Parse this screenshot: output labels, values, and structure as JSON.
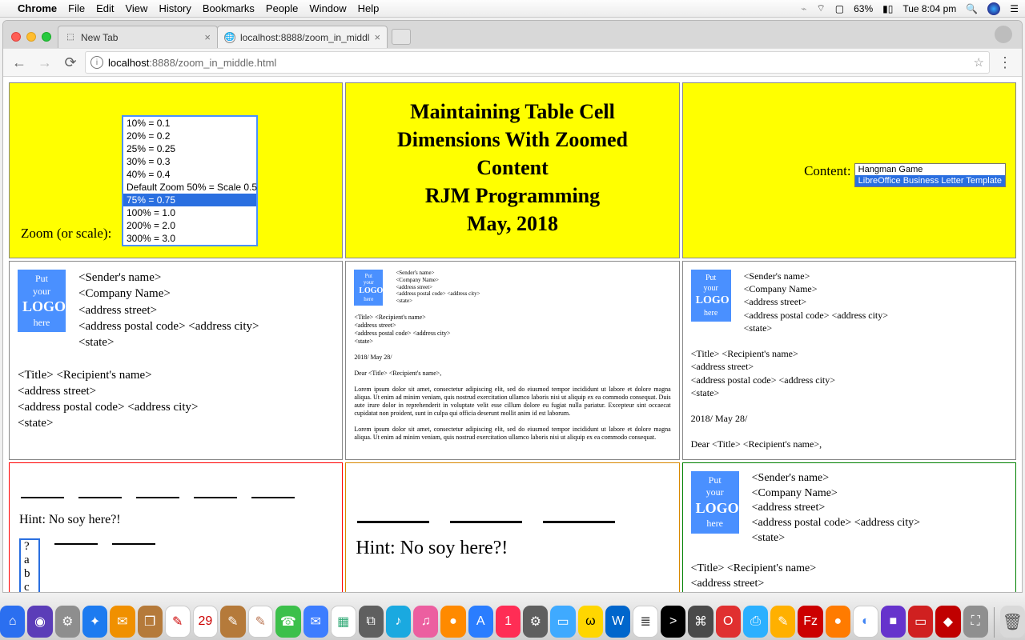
{
  "menubar": {
    "appname": "Chrome",
    "items": [
      "File",
      "Edit",
      "View",
      "History",
      "Bookmarks",
      "People",
      "Window",
      "Help"
    ],
    "battery": "63%",
    "clock": "Tue 8:04 pm"
  },
  "tabs": [
    {
      "title": "New Tab",
      "active": false
    },
    {
      "title": "localhost:8888/zoom_in_middl",
      "active": true
    }
  ],
  "omnibox": {
    "host": "localhost",
    "port": ":8888",
    "path": "/zoom_in_middle.html"
  },
  "page": {
    "zoom_label": "Zoom (or scale):",
    "zoom_options": [
      "10% = 0.1",
      "20% = 0.2",
      "25% = 0.25",
      "30% = 0.3",
      "40% = 0.4",
      "Default Zoom 50% = Scale 0.5",
      "75% = 0.75",
      "100% = 1.0",
      "200% = 2.0",
      "300% = 3.0"
    ],
    "zoom_selected_index": 6,
    "title_lines": [
      "Maintaining Table Cell",
      "Dimensions With Zoomed",
      "Content",
      "RJM Programming",
      "May, 2018"
    ],
    "content_label": "Content:",
    "content_options": [
      "Hangman Game",
      "LibreOffice Business Letter Template"
    ],
    "content_selected_index": 1,
    "letter": {
      "logo": {
        "l1": "Put",
        "l2": "your",
        "l3": "LOGO",
        "l4": "here"
      },
      "sender": [
        "<Sender's name>",
        "<Company Name>",
        "<address street>",
        "<address postal code> <address city>",
        "<state>"
      ],
      "recipient_hdr": "<Title> <Recipient's name>",
      "recipient": [
        "<address street>",
        "<address postal code> <address city>",
        "<state>"
      ],
      "date": "2018/ May 28/",
      "salutation": "Dear <Title> <Recipient's name>,",
      "para1": "Lorem ipsum dolor sit amet, consectetur adipiscing elit, sed do eiusmod tempor incididunt ut labore et dolore magna aliqua. Ut enim ad minim veniam, quis nostrud exercitation ullamco laboris nisi ut aliquip ex ea commodo consequat. Duis aute irure dolor in reprehenderit in voluptate velit esse cillum dolore eu fugiat nulla pariatur. Excepteur sint occaecat cupidatat non proident, sunt in culpa qui officia deserunt mollit anim id est laborum.",
      "para2": "Lorem ipsum dolor sit amet, consectetur adipiscing elit, sed do eiusmod tempor incididunt ut labore et dolore magna aliqua. Ut enim ad minim veniam, quis nostrud exercitation ullamco laboris nisi ut aliquip ex ea commodo consequat."
    },
    "hangman": {
      "word_blanks": 5,
      "hint": "Hint: No soy here?!",
      "visible_blanks_row2": 2,
      "guess_box": [
        "?",
        "a",
        "b",
        "c"
      ]
    },
    "colors": {
      "yellow": "#ffff00",
      "blue": "#4a90ff",
      "sel_blue": "#2a6fe0",
      "red": "#ff0000",
      "orange": "#d88800",
      "green": "#008000"
    }
  },
  "dock_apps": [
    {
      "c": "#2b6ff0",
      "g": "⌂"
    },
    {
      "c": "#5b3db8",
      "g": "◉"
    },
    {
      "c": "#8e8e8e",
      "g": "⚙"
    },
    {
      "c": "#1d7bf0",
      "g": "✦"
    },
    {
      "c": "#f09000",
      "g": "✉"
    },
    {
      "c": "#b57a3a",
      "g": "❐"
    },
    {
      "c": "#ffffff",
      "g": "✎",
      "fg": "#c00"
    },
    {
      "c": "#ffffff",
      "g": "29",
      "fg": "#c00"
    },
    {
      "c": "#b57a3a",
      "g": "✎"
    },
    {
      "c": "#ffffff",
      "g": "✎",
      "fg": "#b75"
    },
    {
      "c": "#3cc04b",
      "g": "☎"
    },
    {
      "c": "#3d7dff",
      "g": "✉"
    },
    {
      "c": "#ffffff",
      "g": "▦",
      "fg": "#3a7"
    },
    {
      "c": "#5f5f5f",
      "g": "⧉"
    },
    {
      "c": "#1aa9e0",
      "g": "♪"
    },
    {
      "c": "#ec5fa0",
      "g": "♫"
    },
    {
      "c": "#ff8a00",
      "g": "●"
    },
    {
      "c": "#2a7dff",
      "g": "A"
    },
    {
      "c": "#ff2d55",
      "g": "1"
    },
    {
      "c": "#5f5f5f",
      "g": "⚙"
    },
    {
      "c": "#3faaff",
      "g": "▭"
    },
    {
      "c": "#ffd600",
      "g": "ω",
      "fg": "#000"
    },
    {
      "c": "#0066cc",
      "g": "W"
    },
    {
      "c": "#ffffff",
      "g": "≣",
      "fg": "#444"
    },
    {
      "c": "#000000",
      "g": ">"
    },
    {
      "c": "#4a4a4a",
      "g": "⌘"
    },
    {
      "c": "#e03030",
      "g": "O"
    },
    {
      "c": "#2bb0ff",
      "g": "⎙"
    },
    {
      "c": "#ffb000",
      "g": "✎"
    },
    {
      "c": "#cc0000",
      "g": "Fz"
    },
    {
      "c": "#ff7b00",
      "g": "●"
    },
    {
      "c": "#ffffff",
      "g": "◐",
      "fg": "#4285f4"
    },
    {
      "c": "#6633cc",
      "g": "■"
    },
    {
      "c": "#d02020",
      "g": "▭"
    },
    {
      "c": "#c00000",
      "g": "◆"
    },
    {
      "c": "#8f8f8f",
      "g": "⛶"
    }
  ],
  "trash": {
    "g": "🗑"
  }
}
